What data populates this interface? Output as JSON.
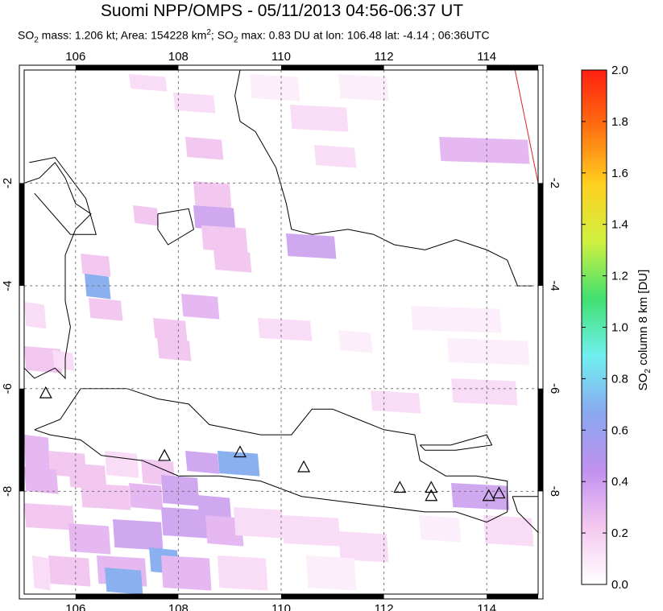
{
  "title": "Suomi NPP/OMPS - 05/11/2013 04:56-06:37 UT",
  "subtitle": {
    "p1": "SO",
    "p1_sub": "2",
    "p2": " mass: 1.206 kt; Area: 154228 km",
    "p2_sup": "2",
    "p3": "; SO",
    "p3_sub": "2",
    "p4": " max: 0.83 DU at lon: 106.48 lat: -4.14 ; 06:36UTC"
  },
  "map": {
    "lon_ticks": [
      "106",
      "108",
      "110",
      "112",
      "114"
    ],
    "lat_ticks": [
      "-2",
      "-4",
      "-6",
      "-8"
    ],
    "lon_range": [
      105,
      115
    ],
    "lat_range": [
      -10,
      0.2
    ],
    "grid": "on (dashed)",
    "volcano_marker": "triangle-icon"
  },
  "colorbar": {
    "ticks": [
      "2.0",
      "1.8",
      "1.6",
      "1.4",
      "1.2",
      "1.0",
      "0.8",
      "0.6",
      "0.4",
      "0.2",
      "0.0"
    ],
    "label_main": "SO",
    "label_sub": "2",
    "label_rest": " column 8 km [DU]",
    "range": [
      0,
      2
    ],
    "colors": [
      "#ffffff",
      "#f5c8f0",
      "#c090f0",
      "#8aa8f0",
      "#70f0f0",
      "#40e070",
      "#d0f040",
      "#ffd020",
      "#ff7010",
      "#ff2010"
    ]
  },
  "chart_data": {
    "type": "heatmap",
    "title": "Suomi NPP/OMPS - 05/11/2013 04:56-06:37 UT",
    "xlabel": "",
    "ylabel": "",
    "xlim": [
      105,
      115
    ],
    "ylim": [
      -10,
      0.2
    ],
    "colorbar_label": "SO2 column 8 km [DU]",
    "max_value": {
      "value": 0.83,
      "lon": 106.48,
      "lat": -4.14
    },
    "volcanoes": [
      {
        "lon": 105.42,
        "lat": -6.1
      },
      {
        "lon": 107.73,
        "lat": -7.32
      },
      {
        "lon": 109.2,
        "lat": -7.25
      },
      {
        "lon": 110.44,
        "lat": -7.54
      },
      {
        "lon": 112.31,
        "lat": -7.94
      },
      {
        "lon": 112.92,
        "lat": -7.94
      },
      {
        "lon": 112.92,
        "lat": -8.1
      },
      {
        "lon": 114.04,
        "lat": -8.1
      },
      {
        "lon": 114.24,
        "lat": -8.05
      }
    ]
  }
}
